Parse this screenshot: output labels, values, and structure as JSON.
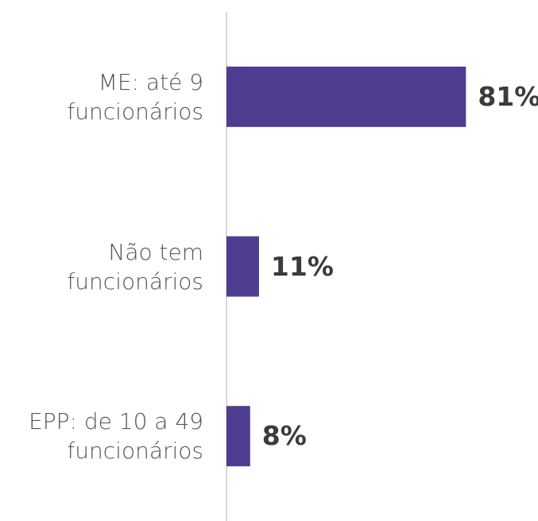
{
  "chart_data": {
    "type": "bar",
    "orientation": "horizontal",
    "categories": [
      "ME: até 9 funcionários",
      "Não tem funcionários",
      "EPP: de 10 a 49 funcionários"
    ],
    "values": [
      81,
      11,
      8
    ],
    "value_labels": [
      "81%",
      "11%",
      "8%"
    ],
    "color": "#4f3d8f",
    "xlim": [
      0,
      100
    ]
  }
}
